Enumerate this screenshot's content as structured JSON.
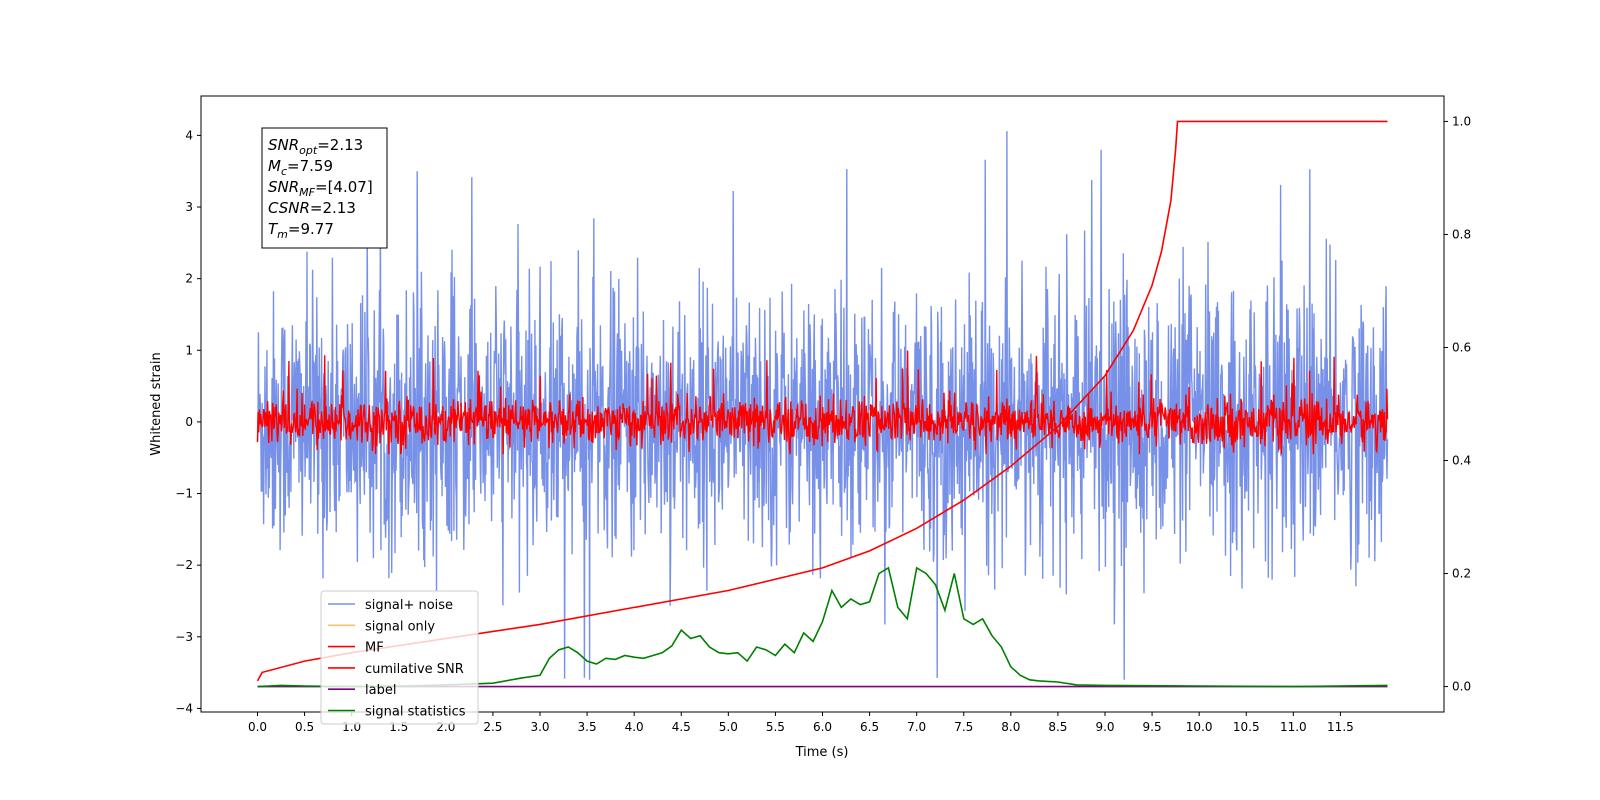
{
  "chart_data": {
    "type": "line",
    "xlabel": "Time (s)",
    "ylabel": "Whitened strain",
    "xlim": [
      -0.6,
      12.6
    ],
    "ylim": [
      -4.05,
      4.55
    ],
    "ylim_right": [
      -0.045,
      1.045
    ],
    "x_ticks": [
      "0.0",
      "0.5",
      "1.0",
      "1.5",
      "2.0",
      "2.5",
      "3.0",
      "3.5",
      "4.0",
      "4.5",
      "5.0",
      "5.5",
      "6.0",
      "6.5",
      "7.0",
      "7.5",
      "8.0",
      "8.5",
      "9.0",
      "9.5",
      "10.0",
      "10.5",
      "11.0",
      "11.5"
    ],
    "y_ticks_left": [
      "−4",
      "−3",
      "−2",
      "−1",
      "0",
      "1",
      "2",
      "3",
      "4"
    ],
    "y_ticks_right": [
      "0.0",
      "0.2",
      "0.4",
      "0.6",
      "0.8",
      "1.0"
    ],
    "info_box": {
      "lines": [
        {
          "base": "SNR",
          "sub": "opt",
          "value": "=2.13"
        },
        {
          "base": "M",
          "sub": "c",
          "value": "=7.59"
        },
        {
          "base": "SNR",
          "sub": "MF",
          "value": "=[4.07]"
        },
        {
          "base": "CSNR",
          "sub": "",
          "value": "=2.13"
        },
        {
          "base": "T",
          "sub": "m",
          "value": "=9.77"
        }
      ]
    },
    "legend": {
      "position": "lower-left",
      "entries": [
        {
          "label": "signal+ noise",
          "color": "#7891e8"
        },
        {
          "label": "signal only",
          "color": "#f5c26b"
        },
        {
          "label": "MF",
          "color": "#ff0000"
        },
        {
          "label": "cumilative SNR",
          "color": "#ff0000"
        },
        {
          "label": "label",
          "color": "#800080"
        },
        {
          "label": "signal statistics",
          "color": "#008000"
        }
      ]
    },
    "series": [
      {
        "name": "signal+ noise",
        "axis": "left",
        "color": "#7891e8",
        "x_range": [
          0.0,
          12.0
        ],
        "envelope": [
          -3.6,
          4.15
        ],
        "typical_range": [
          -2.3,
          2.3
        ]
      },
      {
        "name": "signal only",
        "axis": "left",
        "color": "#f5c26b",
        "x_range": [
          0.0,
          12.0
        ],
        "values": []
      },
      {
        "name": "MF",
        "axis": "left",
        "color": "#ff0000",
        "x_range": [
          0.0,
          12.0
        ],
        "envelope": [
          -0.45,
          1.0
        ],
        "typical_range": [
          -0.4,
          0.5
        ]
      },
      {
        "name": "cumilative SNR",
        "axis": "right",
        "color": "#ff0000",
        "x": [
          0.0,
          0.05,
          0.5,
          1.0,
          2.0,
          3.0,
          4.0,
          5.0,
          6.0,
          6.5,
          7.0,
          7.5,
          8.0,
          8.5,
          9.0,
          9.3,
          9.5,
          9.6,
          9.7,
          9.75,
          9.77,
          10.0,
          11.0,
          12.0
        ],
        "y": [
          0.01,
          0.025,
          0.045,
          0.06,
          0.085,
          0.11,
          0.14,
          0.17,
          0.21,
          0.24,
          0.28,
          0.33,
          0.39,
          0.46,
          0.55,
          0.63,
          0.71,
          0.77,
          0.86,
          0.95,
          1.0,
          1.0,
          1.0,
          1.0
        ]
      },
      {
        "name": "label",
        "axis": "right",
        "color": "#800080",
        "x": [
          0.0,
          12.0
        ],
        "y": [
          0.0,
          0.0
        ]
      },
      {
        "name": "signal statistics",
        "axis": "right",
        "color": "#008000",
        "x": [
          0.0,
          0.25,
          0.5,
          1.0,
          1.5,
          2.0,
          2.5,
          2.8,
          3.0,
          3.1,
          3.2,
          3.3,
          3.4,
          3.5,
          3.6,
          3.7,
          3.8,
          3.9,
          4.0,
          4.1,
          4.2,
          4.3,
          4.4,
          4.5,
          4.6,
          4.7,
          4.8,
          4.9,
          5.0,
          5.1,
          5.2,
          5.3,
          5.4,
          5.5,
          5.6,
          5.7,
          5.8,
          5.9,
          6.0,
          6.1,
          6.2,
          6.3,
          6.4,
          6.5,
          6.6,
          6.7,
          6.8,
          6.9,
          7.0,
          7.1,
          7.2,
          7.3,
          7.4,
          7.5,
          7.6,
          7.7,
          7.8,
          7.9,
          8.0,
          8.1,
          8.2,
          8.3,
          8.5,
          8.7,
          9.0,
          10.0,
          11.0,
          12.0
        ],
        "y": [
          0.0,
          0.002,
          0.001,
          0.0,
          0.001,
          0.003,
          0.006,
          0.015,
          0.02,
          0.05,
          0.065,
          0.07,
          0.06,
          0.045,
          0.04,
          0.05,
          0.048,
          0.055,
          0.052,
          0.05,
          0.055,
          0.06,
          0.072,
          0.1,
          0.085,
          0.09,
          0.07,
          0.06,
          0.058,
          0.06,
          0.045,
          0.07,
          0.065,
          0.055,
          0.075,
          0.06,
          0.095,
          0.08,
          0.115,
          0.17,
          0.14,
          0.155,
          0.145,
          0.15,
          0.2,
          0.21,
          0.14,
          0.12,
          0.21,
          0.2,
          0.18,
          0.135,
          0.2,
          0.12,
          0.11,
          0.12,
          0.09,
          0.07,
          0.035,
          0.02,
          0.012,
          0.01,
          0.008,
          0.003,
          0.002,
          0.001,
          0.0,
          0.002
        ]
      }
    ]
  }
}
